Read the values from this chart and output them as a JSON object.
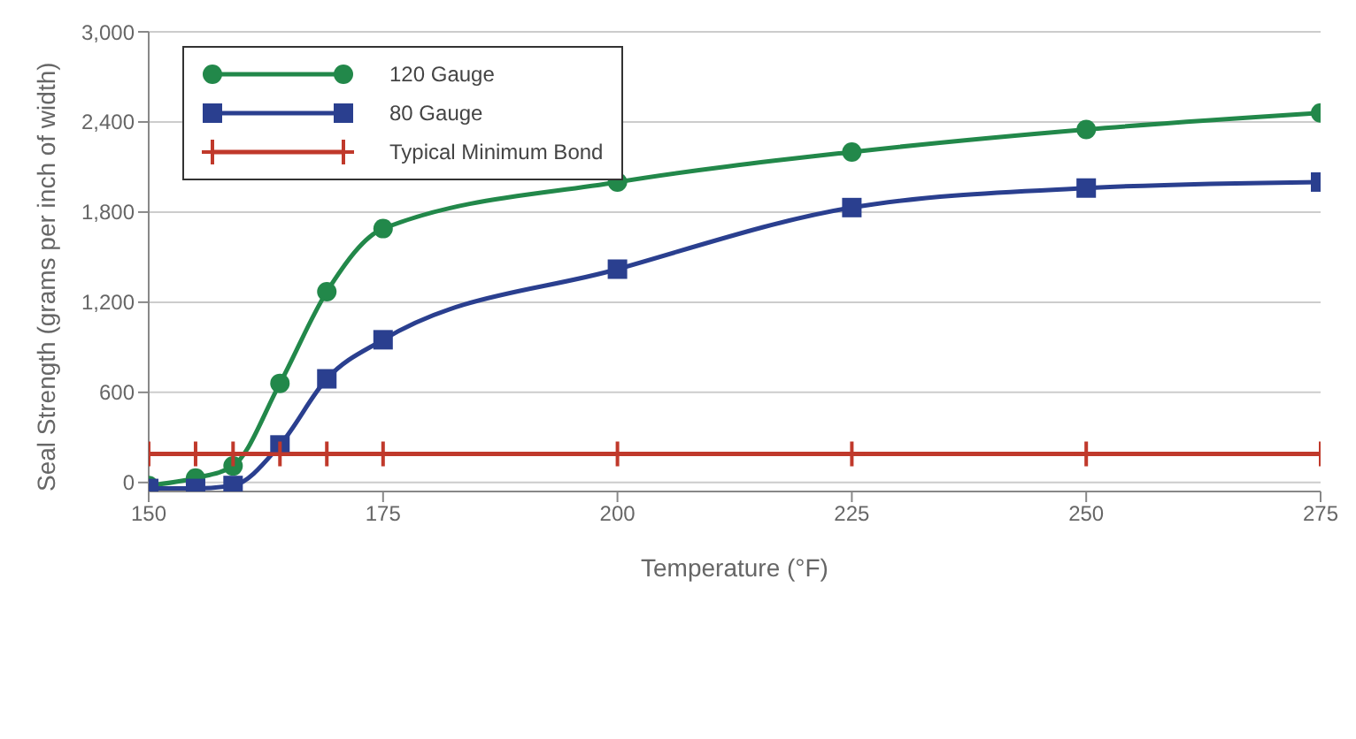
{
  "chart_data": {
    "type": "line",
    "xlabel": "Temperature (°F)",
    "ylabel": "Seal Strength (grams per inch of width)",
    "x": [
      150,
      155,
      159,
      164,
      169,
      175,
      200,
      225,
      250,
      275
    ],
    "xlim": [
      150,
      275
    ],
    "xticks": [
      150,
      175,
      200,
      225,
      250,
      275
    ],
    "ylim": [
      -60,
      3000
    ],
    "yticks": [
      {
        "value": 0,
        "label": "0"
      },
      {
        "value": 600,
        "label": "600"
      },
      {
        "value": 1200,
        "label": "1,200"
      },
      {
        "value": 1800,
        "label": "1,800"
      },
      {
        "value": 2400,
        "label": "2,400"
      },
      {
        "value": 3000,
        "label": "3,000"
      }
    ],
    "grid": "y",
    "legend": "top left",
    "line_style": "solid",
    "series": [
      {
        "name": "120 Gauge",
        "color": "#22884a",
        "marker": "circle",
        "values": [
          -20,
          30,
          110,
          660,
          1270,
          1690,
          2000,
          2200,
          2350,
          2460
        ]
      },
      {
        "name": "80 Gauge",
        "color": "#2a3f8f",
        "marker": "square",
        "values": [
          -40,
          -40,
          -20,
          250,
          690,
          950,
          1420,
          1830,
          1960,
          2000
        ]
      },
      {
        "name": "Typical Minimum Bond",
        "color": "#c0392b",
        "marker": "cross",
        "values": [
          190,
          190,
          190,
          190,
          190,
          190,
          190,
          190,
          190,
          190
        ]
      }
    ]
  }
}
